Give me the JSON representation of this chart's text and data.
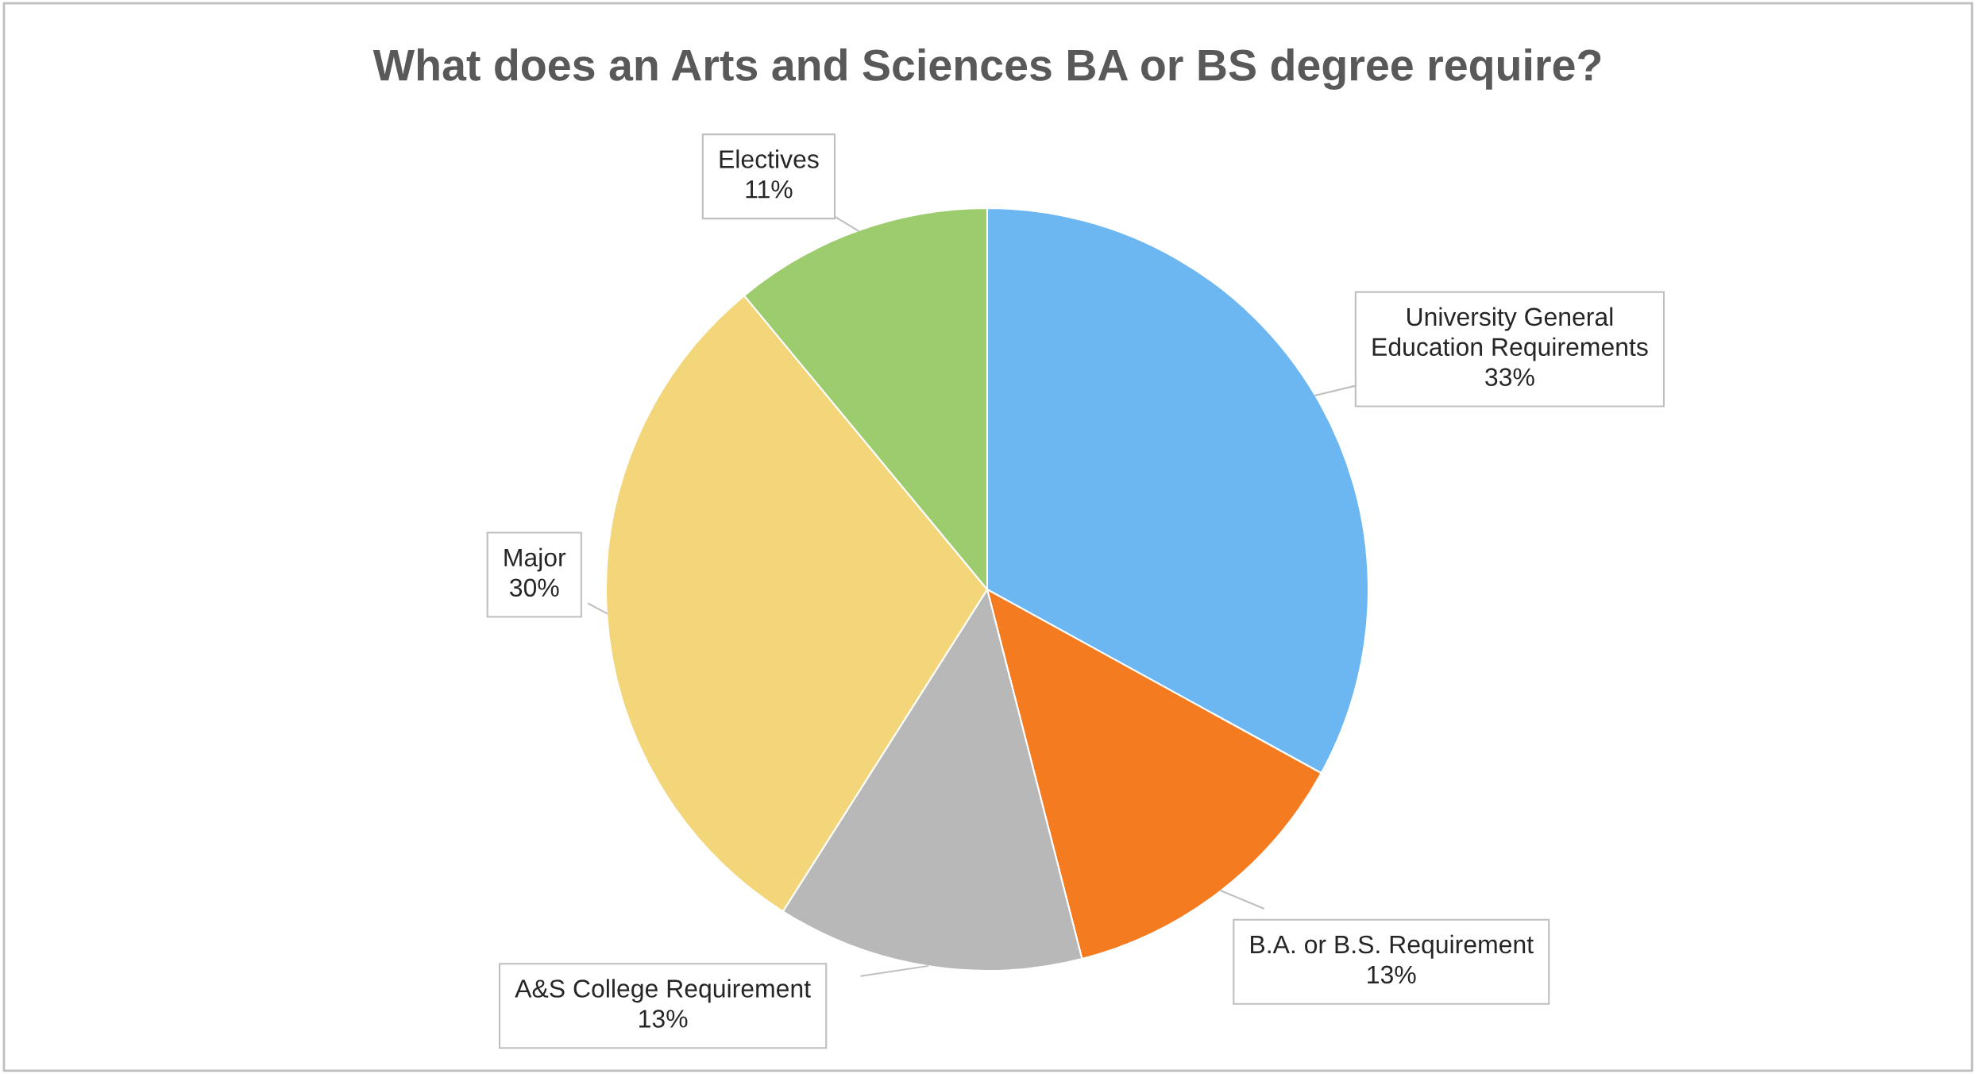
{
  "chart_data": {
    "type": "pie",
    "title": "What does an Arts and Sciences BA or BS degree require?",
    "categories": [
      "University General Education Requirements",
      "B.A. or B.S. Requirement",
      "A&S College Requirement",
      "Major",
      "Electives"
    ],
    "values": [
      33,
      13,
      13,
      30,
      11
    ],
    "colors": [
      "#6cb6f2",
      "#f47b20",
      "#b8b8b8",
      "#f4d67a",
      "#9dcc6e"
    ],
    "value_labels": [
      "33%",
      "13%",
      "13%",
      "30%",
      "11%"
    ],
    "legend": false
  }
}
